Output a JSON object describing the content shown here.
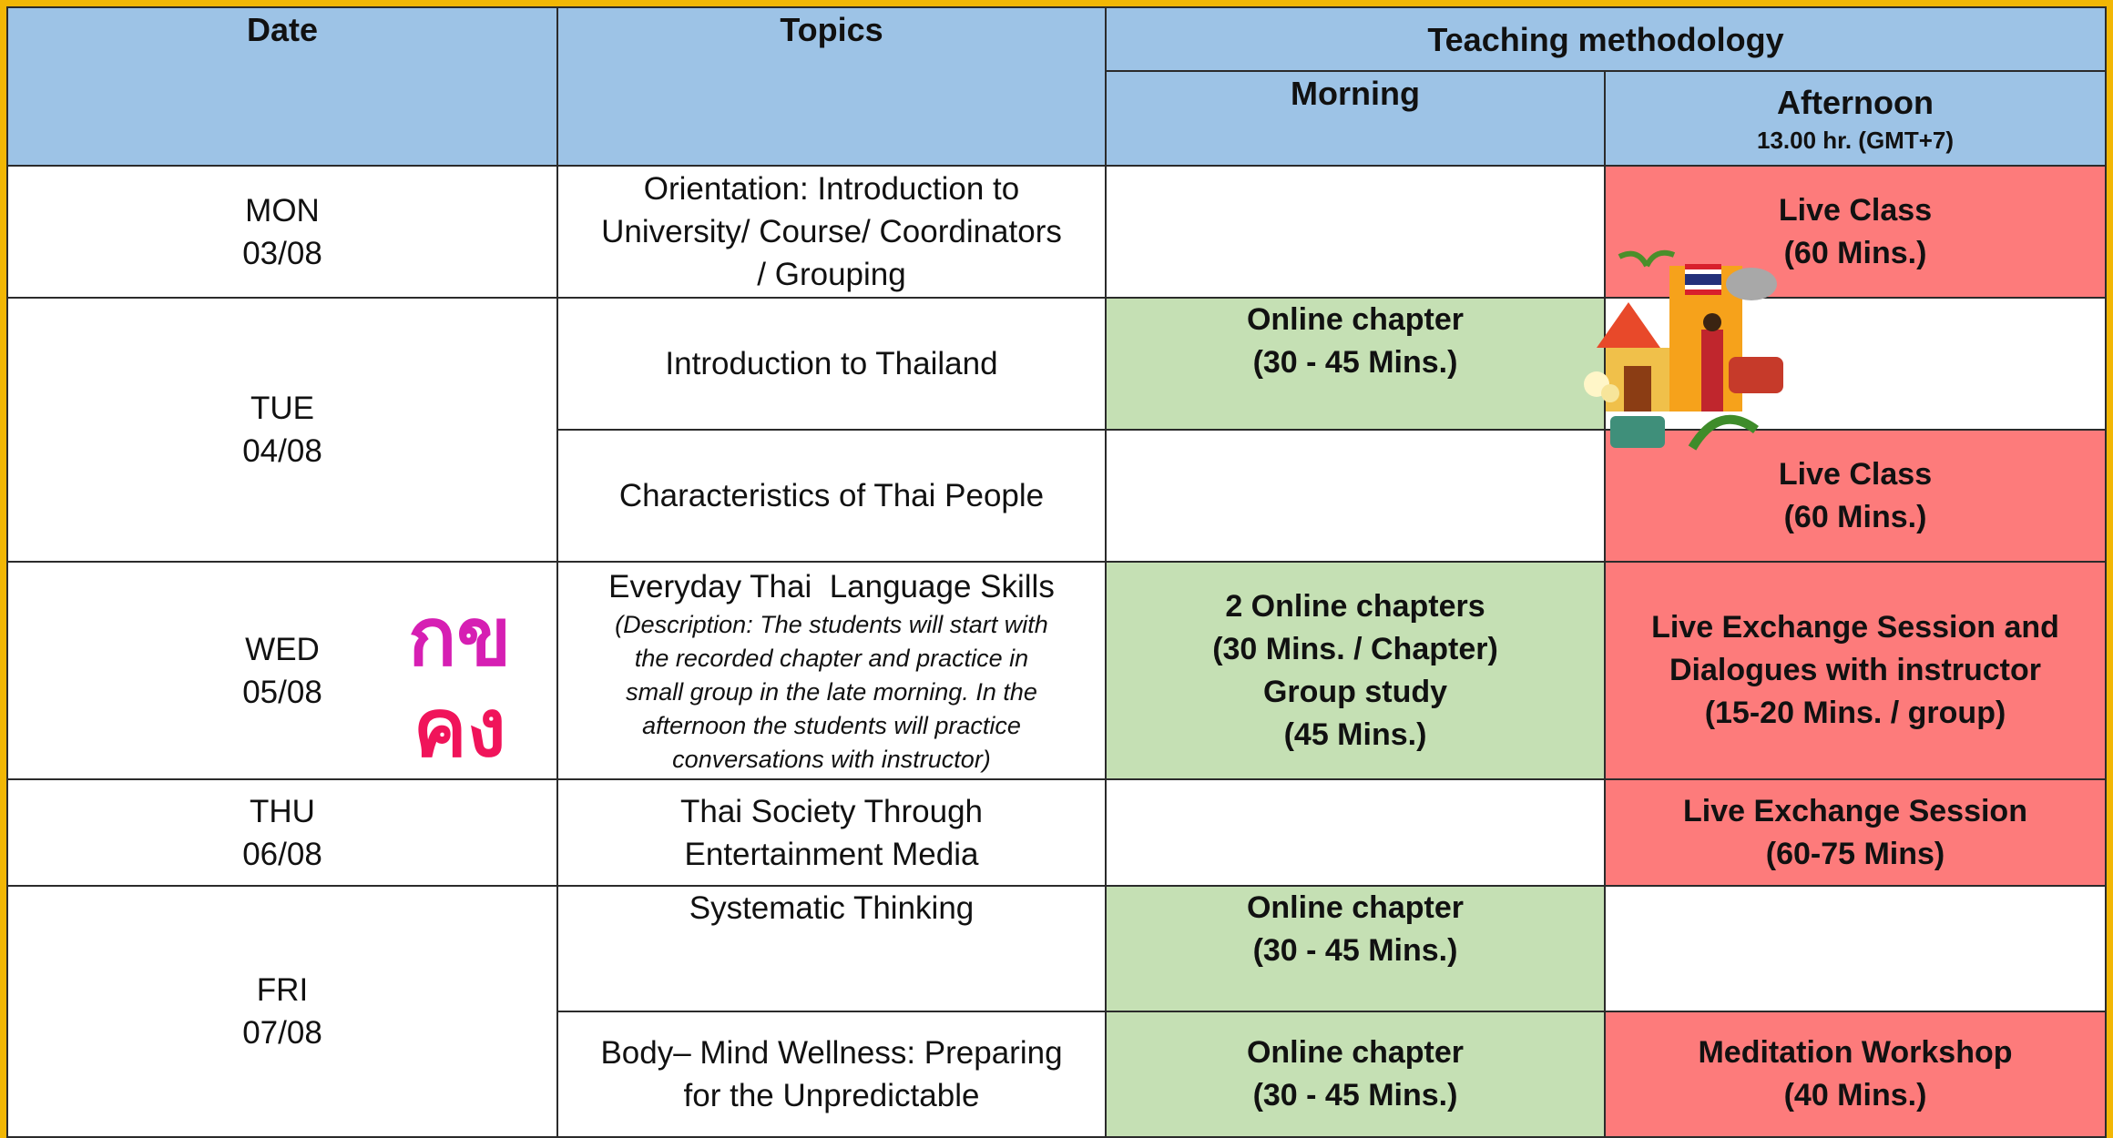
{
  "header": {
    "date": "Date",
    "topics": "Topics",
    "methodology": "Teaching methodology",
    "morning": "Morning",
    "afternoon": "Afternoon",
    "afternoon_time": "13.00 hr. (GMT+7)"
  },
  "days": [
    {
      "day": "MON",
      "date": "03/08"
    },
    {
      "day": "TUE",
      "date": "04/08"
    },
    {
      "day": "WED",
      "date": "05/08"
    },
    {
      "day": "THU",
      "date": "06/08"
    },
    {
      "day": "FRI",
      "date": "07/08"
    }
  ],
  "sessions": [
    {
      "topic": [
        "Orientation: Introduction to",
        "University/ Course/ Coordinators",
        "/ Grouping"
      ],
      "afternoon": [
        "Live Class",
        "(60 Mins.)"
      ]
    },
    {
      "topic": [
        "Introduction to Thailand"
      ],
      "morning": [
        "Online chapter",
        "(30 - 45 Mins.)"
      ]
    },
    {
      "topic": [
        "Characteristics of Thai People"
      ],
      "afternoon": [
        "Live Class",
        "(60 Mins.)"
      ]
    },
    {
      "topic": [
        "Everyday Thai  Language Skills"
      ],
      "description": [
        "(Description: The students will start with",
        "the recorded chapter and practice in",
        "small group in the late morning. In the",
        "afternoon the students will practice",
        "conversations with instructor)"
      ],
      "morning": [
        "2 Online chapters",
        "(30 Mins. / Chapter)",
        "Group study",
        "(45 Mins.)"
      ],
      "afternoon": [
        "Live Exchange Session and",
        "Dialogues with instructor",
        "(15-20 Mins. / group)"
      ]
    },
    {
      "topic": [
        "Thai Society Through",
        "Entertainment Media"
      ],
      "afternoon": [
        "Live Exchange Session",
        "(60-75 Mins)"
      ]
    },
    {
      "topic": [
        "Systematic Thinking"
      ],
      "morning": [
        "Online chapter",
        "(30 - 45 Mins.)"
      ]
    },
    {
      "topic": [
        "Body– Mind Wellness: Preparing",
        "for the Unpredictable"
      ],
      "morning": [
        "Online chapter",
        "(30 - 45 Mins.)"
      ],
      "afternoon": [
        "Meditation Workshop",
        "(40 Mins.)"
      ]
    }
  ],
  "decoration_text": [
    "กข",
    "คง"
  ]
}
